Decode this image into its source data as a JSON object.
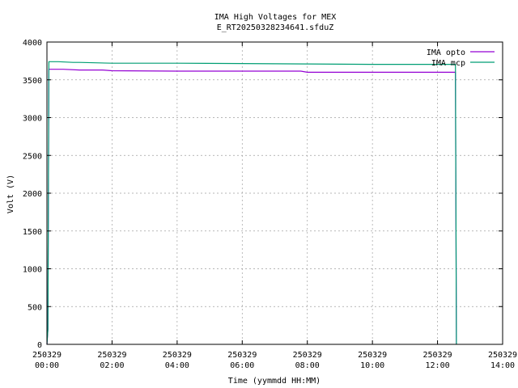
{
  "chart_data": {
    "type": "line",
    "title": "IMA High Voltages for MEX",
    "subtitle": "E_RT20250328234641.sfduZ",
    "xlabel": "Time (yymmdd HH:MM)",
    "ylabel": "Volt (V)",
    "xlim": [
      0,
      14
    ],
    "ylim": [
      0,
      4000
    ],
    "x_unit": "hours since 250329 00:00",
    "x_ticks": [
      {
        "value": 0,
        "date": "250329",
        "time": "00:00"
      },
      {
        "value": 2,
        "date": "250329",
        "time": "02:00"
      },
      {
        "value": 4,
        "date": "250329",
        "time": "04:00"
      },
      {
        "value": 6,
        "date": "250329",
        "time": "06:00"
      },
      {
        "value": 8,
        "date": "250329",
        "time": "08:00"
      },
      {
        "value": 10,
        "date": "250329",
        "time": "10:00"
      },
      {
        "value": 12,
        "date": "250329",
        "time": "12:00"
      },
      {
        "value": 14,
        "date": "250329",
        "time": "14:00"
      }
    ],
    "y_ticks": [
      0,
      500,
      1000,
      1500,
      2000,
      2500,
      3000,
      3500,
      4000
    ],
    "grid": true,
    "legend_position": "top-right",
    "series": [
      {
        "name": "IMA opto",
        "color": "#9400d3",
        "points": [
          [
            0.0,
            0
          ],
          [
            0.03,
            200
          ],
          [
            0.06,
            3640
          ],
          [
            0.5,
            3640
          ],
          [
            1.0,
            3630
          ],
          [
            1.7,
            3630
          ],
          [
            2.0,
            3620
          ],
          [
            4.0,
            3615
          ],
          [
            6.0,
            3615
          ],
          [
            7.8,
            3615
          ],
          [
            8.0,
            3600
          ],
          [
            10.0,
            3600
          ],
          [
            12.0,
            3600
          ],
          [
            12.55,
            3600
          ],
          [
            12.58,
            0
          ]
        ]
      },
      {
        "name": "IMA mcp",
        "color": "#009e73",
        "points": [
          [
            0.0,
            0
          ],
          [
            0.03,
            200
          ],
          [
            0.06,
            3740
          ],
          [
            0.35,
            3740
          ],
          [
            0.8,
            3730
          ],
          [
            1.0,
            3730
          ],
          [
            2.0,
            3720
          ],
          [
            4.0,
            3720
          ],
          [
            6.0,
            3715
          ],
          [
            8.0,
            3710
          ],
          [
            10.0,
            3705
          ],
          [
            12.0,
            3705
          ],
          [
            12.55,
            3705
          ],
          [
            12.58,
            0
          ]
        ]
      }
    ]
  }
}
